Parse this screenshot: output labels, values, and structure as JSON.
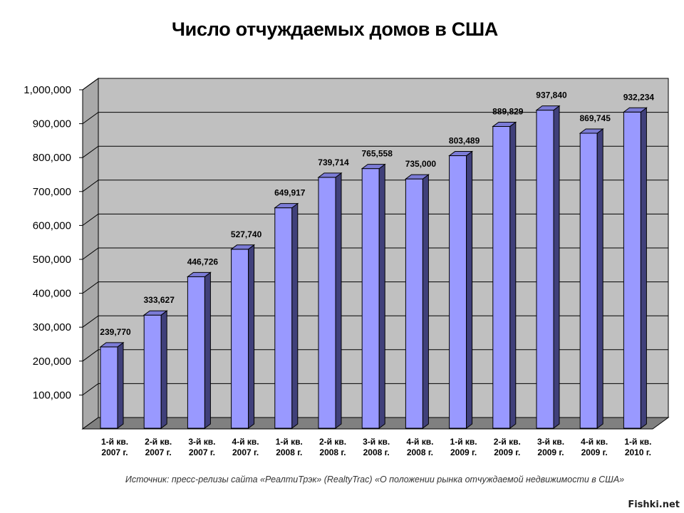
{
  "chart_data": {
    "type": "bar",
    "title": "Число отчуждаемых домов в США",
    "categories": [
      [
        "1-й кв.",
        "2007 г."
      ],
      [
        "2-й кв.",
        "2007 г."
      ],
      [
        "3-й кв.",
        "2007 г."
      ],
      [
        "4-й кв.",
        "2007 г."
      ],
      [
        "1-й кв.",
        "2008 г."
      ],
      [
        "2-й кв.",
        "2008 г."
      ],
      [
        "3-й кв.",
        "2008 г."
      ],
      [
        "4-й кв.",
        "2008 г."
      ],
      [
        "1-й кв.",
        "2009 г."
      ],
      [
        "2-й кв.",
        "2009 г."
      ],
      [
        "3-й кв.",
        "2009 г."
      ],
      [
        "4-й кв.",
        "2009 г."
      ],
      [
        "1-й кв.",
        "2010 г."
      ]
    ],
    "values": [
      239770,
      333627,
      446726,
      527740,
      649917,
      739714,
      765558,
      735000,
      803489,
      889829,
      937840,
      869745,
      932234
    ],
    "value_labels": [
      "239,770",
      "333,627",
      "446,726",
      "527,740",
      "649,917",
      "739,714",
      "765,558",
      "735,000",
      "803,489",
      "889,829",
      "937,840",
      "869,745",
      "932,234"
    ],
    "yticks": [
      100000,
      200000,
      300000,
      400000,
      500000,
      600000,
      700000,
      800000,
      900000,
      1000000
    ],
    "ytick_labels": [
      "100,000",
      "200,000",
      "300,000",
      "400,000",
      "500,000",
      "600,000",
      "700,000",
      "800,000",
      "900,000",
      "1,000,000"
    ],
    "ylim": [
      0,
      1000000
    ],
    "grid": true,
    "legend": "none",
    "bar_color": "#9999ff"
  },
  "source": "Источник: пресс-релизы сайта «РеалтиТрэк» (RealtyTrac) «О положении рынка отчуждаемой недвижимости в США»",
  "watermark": "Fishki.net"
}
